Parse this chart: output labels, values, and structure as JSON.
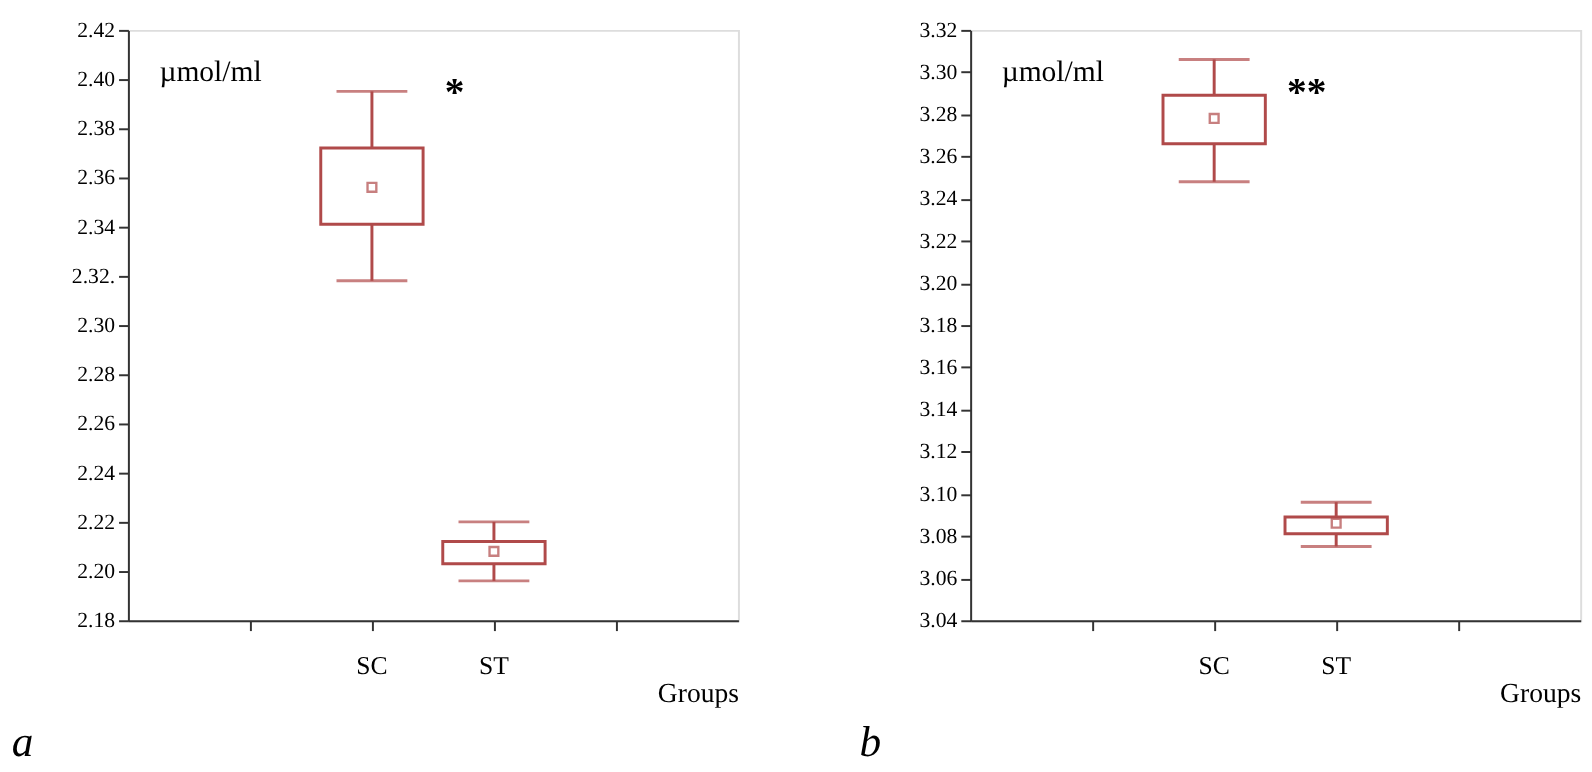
{
  "chart_data": [
    {
      "type": "box",
      "title": "a",
      "xlabel": "Groups",
      "ylabel": "µmol/ml",
      "categories": [
        null,
        "SC",
        "ST",
        null
      ],
      "annotations": [
        "*"
      ],
      "ylim": [
        2.18,
        2.42
      ],
      "yticks": [
        2.18,
        {
          "value": 2.2,
          "label": "2.20"
        },
        2.22,
        2.24,
        2.26,
        2.28,
        {
          "value": 2.3,
          "label": "2.30"
        },
        {
          "value": 2.32,
          "label": "2.32."
        },
        2.34,
        2.36,
        2.38,
        {
          "value": 2.4,
          "label": "2.40"
        },
        2.42
      ],
      "series": [
        {
          "color": "#b04a4a",
          "boxes": [
            null,
            {
              "low": 2.318,
              "q1": 2.341,
              "median": 2.356,
              "q3": 2.372,
              "high": 2.395
            },
            {
              "low": 2.196,
              "q1": 2.203,
              "median": 2.208,
              "q3": 2.212,
              "high": 2.22
            },
            null
          ]
        }
      ]
    },
    {
      "type": "box",
      "title": "b",
      "xlabel": "Groups",
      "ylabel": "µmol/ml",
      "categories": [
        null,
        "SC",
        "ST",
        null
      ],
      "annotations": [
        "**"
      ],
      "ylim": [
        3.04,
        3.32
      ],
      "yticks": [
        3.04,
        3.06,
        3.08,
        {
          "value": 3.1,
          "label": "3.10"
        },
        3.12,
        3.14,
        3.16,
        3.18,
        {
          "value": 3.2,
          "label": "3.20"
        },
        3.22,
        3.24,
        3.26,
        3.28,
        {
          "value": 3.3,
          "label": "3.30"
        },
        3.32
      ],
      "series": [
        {
          "color": "#b04a4a",
          "boxes": [
            null,
            {
              "low": 3.248,
              "q1": 3.266,
              "median": 3.278,
              "q3": 3.289,
              "high": 3.306
            },
            {
              "low": 3.075,
              "q1": 3.081,
              "median": 3.086,
              "q3": 3.089,
              "high": 3.096
            },
            null
          ]
        }
      ]
    }
  ]
}
